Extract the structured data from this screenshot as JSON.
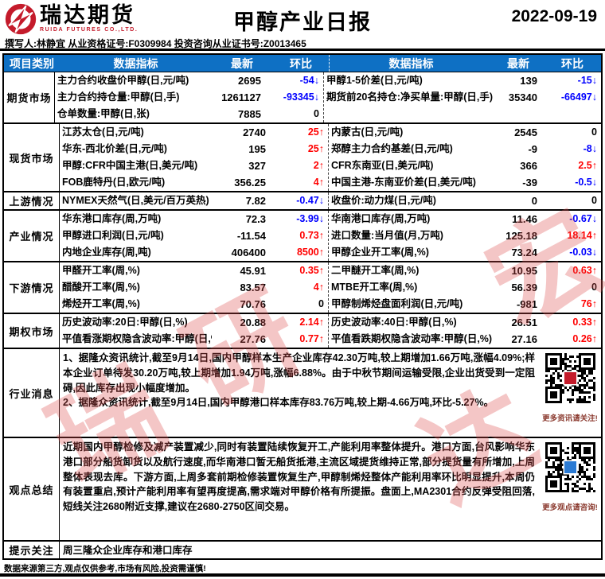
{
  "colors": {
    "accent_blue": "#0e70c4",
    "up_red": "#ff0000",
    "down_blue": "#0000ff",
    "logo_red": "#c41b2b",
    "caption_red": "#8b3a2f",
    "watermark_red": "#e05050"
  },
  "header": {
    "logo_cn": "瑞达期货",
    "logo_en": "RUIDA FUTURES CO.,LTD.",
    "title": "甲醇产业日报",
    "date": "2022-09-19",
    "byline": "撰写人:林静宜  从业资格证号:F0309984  投资咨询从业证书号:Z0013465"
  },
  "table": {
    "headers": {
      "category": "项目类别",
      "indicator": "数据指标",
      "latest": "最新",
      "change": "环比"
    },
    "sections": [
      {
        "category": "期货市场",
        "left": [
          {
            "indicator": "主力合约收盘价甲醇(日,元/吨)",
            "latest": "2695",
            "change": "-54↓",
            "dir": "down"
          },
          {
            "indicator": "主力合约持仓量:甲醇(日,手)",
            "latest": "1261127",
            "change": "-93345↓",
            "dir": "down"
          },
          {
            "indicator": "仓单数量:甲醇(日,张)",
            "latest": "7885",
            "change": "0",
            "dir": "flat"
          }
        ],
        "right": [
          {
            "indicator": "甲醇1-5价差(日,元/吨)",
            "latest": "139",
            "change": "-15↓",
            "dir": "down"
          },
          {
            "indicator": "期货前20名持仓:净买单量:甲醇(日,手)",
            "latest": "35340",
            "change": "-66497↓",
            "dir": "down"
          },
          {
            "indicator": "",
            "latest": "",
            "change": "",
            "dir": "flat"
          }
        ]
      },
      {
        "category": "现货市场",
        "left": [
          {
            "indicator": "江苏太仓(日,元/吨)",
            "latest": "2740",
            "change": "25↑",
            "dir": "up"
          },
          {
            "indicator": "华东-西北价差(日,元/吨)",
            "latest": "195",
            "change": "25↑",
            "dir": "up"
          },
          {
            "indicator": "甲醇:CFR中国主港(日,美元/吨)",
            "latest": "327",
            "change": "2↑",
            "dir": "up"
          },
          {
            "indicator": "FOB鹿特丹(日,欧元/吨)",
            "latest": "356.25",
            "change": "4↑",
            "dir": "up"
          }
        ],
        "right": [
          {
            "indicator": "内蒙古(日,元/吨)",
            "latest": "2545",
            "change": "0",
            "dir": "flat"
          },
          {
            "indicator": "郑醇主力合约基差(日,元/吨)",
            "latest": "-9",
            "change": "-8↓",
            "dir": "down"
          },
          {
            "indicator": "CFR东南亚(日,美元/吨)",
            "latest": "366",
            "change": "2.5↑",
            "dir": "up"
          },
          {
            "indicator": "中国主港-东南亚价差(日,美元/吨)",
            "latest": "-39",
            "change": "-0.5↓",
            "dir": "down"
          }
        ]
      },
      {
        "category": "上游情况",
        "left": [
          {
            "indicator": "NYMEX天然气(日,美元/百万英热)",
            "latest": "7.82",
            "change": "-0.47↓",
            "dir": "down"
          }
        ],
        "right": [
          {
            "indicator": "收盘价:动力煤(日,元/吨)",
            "latest": "0",
            "change": "0",
            "dir": "flat"
          }
        ]
      },
      {
        "category": "产业情况",
        "left": [
          {
            "indicator": "华东港口库存(周,万吨)",
            "latest": "72.3",
            "change": "-3.99↓",
            "dir": "down"
          },
          {
            "indicator": "甲醇进口利润(日,元/吨)",
            "latest": "-11.54",
            "change": "0.73↑",
            "dir": "up"
          },
          {
            "indicator": "内地企业库存(周,吨)",
            "latest": "406400",
            "change": "8500↑",
            "dir": "up"
          }
        ],
        "right": [
          {
            "indicator": "华南港口库存(周,万吨)",
            "latest": "11.46",
            "change": "-0.67↓",
            "dir": "down"
          },
          {
            "indicator": "进口数量:当月值(月,万吨)",
            "latest": "125.18",
            "change": "18.14↑",
            "dir": "up"
          },
          {
            "indicator": "甲醇企业开工率(周,%)",
            "latest": "73.24",
            "change": "-0.03↓",
            "dir": "down"
          }
        ]
      },
      {
        "category": "下游情况",
        "left": [
          {
            "indicator": "甲醛开工率(周,%)",
            "latest": "45.91",
            "change": "0.35↑",
            "dir": "up"
          },
          {
            "indicator": "醋酸开工率(周,%)",
            "latest": "83.57",
            "change": "4↑",
            "dir": "up"
          },
          {
            "indicator": "烯烃开工率(周,%)",
            "latest": "70.76",
            "change": "0",
            "dir": "flat"
          }
        ],
        "right": [
          {
            "indicator": "二甲醚开工率(周,%)",
            "latest": "10.95",
            "change": "0.63↑",
            "dir": "up"
          },
          {
            "indicator": "MTBE开工率(周,%)",
            "latest": "56.39",
            "change": "0",
            "dir": "flat"
          },
          {
            "indicator": "甲醇制烯烃盘面利润(日,元/吨)",
            "latest": "-981",
            "change": "76↑",
            "dir": "up"
          }
        ]
      },
      {
        "category": "期权市场",
        "left": [
          {
            "indicator": "历史波动率:20日:甲醇(日,%)",
            "latest": "20.88",
            "change": "2.14↑",
            "dir": "up"
          },
          {
            "indicator": "平值看涨期权隐含波动率:甲醇(日,%)",
            "latest": "27.76",
            "change": "0.77↑",
            "dir": "up"
          }
        ],
        "right": [
          {
            "indicator": "历史波动率:40日:甲醇(日,%)",
            "latest": "26.51",
            "change": "0.33↑",
            "dir": "up"
          },
          {
            "indicator": "平值看跌期权隐含波动率:甲醇(日,%)",
            "latest": "27.16",
            "change": "0.26↑",
            "dir": "up"
          }
        ]
      }
    ]
  },
  "news": {
    "category": "行业消息",
    "paragraphs": [
      "1、据隆众资讯统计,截至9月14日,国内甲醇样本生产企业库存42.30万吨,较上期增加1.66万吨,涨幅4.09%;样本企业订单待发30.20万吨,较上期增加1.94万吨,涨幅6.88%。由于中秋节期间运输受限,企业出货受到一定阻碍,因此库存出现小幅度增加。",
      "2、据隆众资讯统计,截至9月14日,国内甲醇港口样本库存83.76万吨,较上期-4.66万吨,环比-5.27%。"
    ],
    "qr_caption": "更多资讯请关注!"
  },
  "summary": {
    "category": "观点总结",
    "paragraphs": [
      "近期国内甲醇检修及减产装置减少,同时有装置陆续恢复开工,产能利用率整体提升。港口方面,台风影响华东港口部分船货卸货以及航行速度,而华南港口暂无船货抵港,主流区域提货维持正常,部分提货量有所增加,上周整体表现去库。下游方面,上周多套前期检修装置恢复生产,甲醇制烯烃整体产能利用率环比明显提升,本周仍有装置重启,预计产能利用率有望再度提高,需求端对甲醇价格有所提振。盘面上,MA2301合约反弹受阻回落,短线关注2680附近支撑,建议在2680-2750区间交易。"
    ],
    "qr_caption": "更多观点请咨询!"
  },
  "watch": {
    "category": "提示关注",
    "text": "周三隆众企业库存和港口库存"
  },
  "footer": {
    "disclaimer": "数据来源第三方,观点仅供参考,市场有风险,投资需谨慎!"
  },
  "watermark": {
    "chars": [
      "瑞",
      "达",
      "宏",
      "研"
    ]
  }
}
